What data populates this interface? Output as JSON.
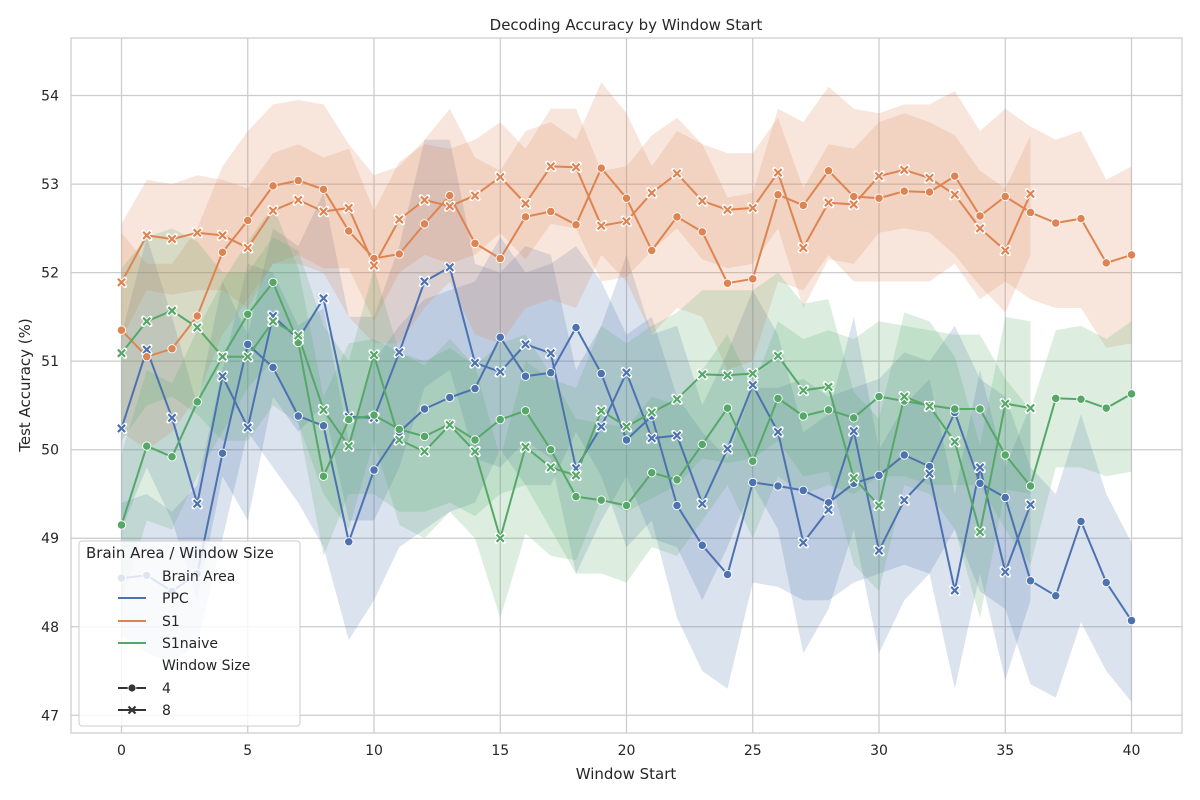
{
  "chart_data": {
    "type": "line",
    "title": "Decoding Accuracy by Window Start",
    "xlabel": "Window Start",
    "ylabel": "Test Accuracy (%)",
    "xlim": [
      -2,
      42
    ],
    "ylim": [
      46.8,
      54.65
    ],
    "xticks": [
      0,
      5,
      10,
      15,
      20,
      25,
      30,
      35,
      40
    ],
    "yticks": [
      47,
      48,
      49,
      50,
      51,
      52,
      53,
      54
    ],
    "grid": true,
    "legend": {
      "position": "lower-left",
      "title": "Brain Area / Window Size",
      "hue_header": "Brain Area",
      "style_header": "Window Size",
      "hue_entries": [
        "PPC",
        "S1",
        "S1naive"
      ],
      "style_entries": [
        "4",
        "8"
      ]
    },
    "colors": {
      "PPC": "#4c72b0",
      "S1": "#dd8452",
      "S1naive": "#55a868"
    },
    "series": [
      {
        "name": "PPC",
        "window": "4",
        "marker": "circle",
        "x": [
          0,
          1,
          2,
          3,
          4,
          5,
          6,
          7,
          8,
          9,
          10,
          11,
          12,
          13,
          14,
          15,
          16,
          17,
          18,
          19,
          20,
          21,
          22,
          23,
          24,
          25,
          26,
          27,
          28,
          29,
          30,
          31,
          32,
          33,
          34,
          35,
          36,
          37,
          38,
          39,
          40
        ],
        "y": [
          48.55,
          48.58,
          48.4,
          48.6,
          49.96,
          51.19,
          50.93,
          50.38,
          50.27,
          48.96,
          49.77,
          50.2,
          50.46,
          50.59,
          50.69,
          51.27,
          50.83,
          50.87,
          51.38,
          50.86,
          50.11,
          50.38,
          49.37,
          48.92,
          48.59,
          49.63,
          49.59,
          49.54,
          49.4,
          49.62,
          49.71,
          49.94,
          49.81,
          50.42,
          49.62,
          49.46,
          48.52,
          48.35,
          49.19,
          48.5,
          48.07
        ],
        "lower": [
          47.9,
          47.7,
          47.6,
          47.8,
          49.0,
          50.2,
          49.8,
          49.4,
          48.9,
          47.85,
          48.3,
          48.9,
          49.1,
          49.3,
          49.4,
          50.0,
          49.6,
          49.6,
          50.2,
          49.7,
          48.9,
          49.2,
          48.1,
          47.5,
          47.3,
          48.5,
          48.45,
          48.3,
          48.3,
          48.5,
          48.6,
          48.7,
          48.6,
          49.1,
          48.4,
          48.2,
          47.35,
          47.2,
          48.05,
          47.5,
          47.15
        ],
        "upper": [
          49.4,
          49.5,
          49.3,
          49.6,
          50.9,
          52.1,
          52.0,
          51.4,
          51.6,
          50.1,
          51.0,
          51.4,
          51.7,
          51.8,
          51.9,
          52.4,
          52.0,
          52.1,
          52.3,
          51.9,
          51.3,
          51.5,
          50.6,
          50.2,
          49.9,
          50.7,
          50.7,
          50.8,
          50.6,
          50.7,
          50.8,
          51.1,
          51.0,
          51.4,
          50.8,
          50.6,
          49.8,
          49.5,
          50.4,
          49.5,
          48.95
        ]
      },
      {
        "name": "PPC",
        "window": "8",
        "marker": "x",
        "x": [
          0,
          1,
          2,
          3,
          4,
          5,
          6,
          7,
          8,
          9,
          10,
          11,
          12,
          13,
          14,
          15,
          16,
          17,
          18,
          19,
          20,
          21,
          22,
          23,
          24,
          25,
          26,
          27,
          28,
          29,
          30,
          31,
          32,
          33,
          34,
          35,
          36
        ],
        "y": [
          50.24,
          51.13,
          50.36,
          49.39,
          50.83,
          50.25,
          51.51,
          51.25,
          51.71,
          50.37,
          50.36,
          51.1,
          51.9,
          52.06,
          50.98,
          50.88,
          51.19,
          51.09,
          49.79,
          50.26,
          50.87,
          50.13,
          50.16,
          49.39,
          50.01,
          50.73,
          50.2,
          48.95,
          49.32,
          50.21,
          48.86,
          49.43,
          49.73,
          48.41,
          49.8,
          48.62,
          49.38
        ],
        "lower": [
          49.1,
          49.8,
          49.2,
          48.3,
          49.7,
          49.2,
          50.6,
          50.2,
          50.5,
          49.2,
          49.2,
          49.8,
          50.7,
          50.9,
          49.9,
          49.8,
          50.1,
          49.9,
          48.6,
          49.2,
          49.7,
          49.0,
          48.9,
          48.3,
          48.9,
          49.6,
          49.1,
          47.7,
          48.2,
          49.1,
          47.7,
          48.3,
          48.6,
          47.3,
          48.6,
          47.4,
          48.3
        ],
        "upper": [
          51.3,
          52.4,
          51.5,
          50.5,
          51.9,
          51.3,
          52.5,
          52.3,
          52.9,
          51.5,
          51.5,
          52.3,
          53.5,
          53.5,
          52.1,
          52.0,
          52.3,
          52.2,
          50.9,
          51.4,
          52.2,
          51.3,
          51.4,
          50.5,
          51.1,
          51.8,
          51.3,
          50.2,
          50.4,
          51.5,
          50.0,
          50.5,
          50.8,
          49.5,
          50.9,
          49.8,
          50.5
        ]
      },
      {
        "name": "S1",
        "window": "4",
        "marker": "circle",
        "x": [
          0,
          1,
          2,
          3,
          4,
          5,
          6,
          7,
          8,
          9,
          10,
          11,
          12,
          13,
          14,
          15,
          16,
          17,
          18,
          19,
          20,
          21,
          22,
          23,
          24,
          25,
          26,
          27,
          28,
          29,
          30,
          31,
          32,
          33,
          34,
          35,
          36,
          37,
          38,
          39,
          40
        ],
        "y": [
          51.35,
          51.05,
          51.14,
          51.51,
          52.23,
          52.59,
          52.98,
          53.04,
          52.94,
          52.47,
          52.16,
          52.21,
          52.55,
          52.87,
          52.33,
          52.16,
          52.63,
          52.69,
          52.54,
          53.18,
          52.84,
          52.25,
          52.63,
          52.46,
          51.88,
          51.93,
          52.88,
          52.76,
          53.15,
          52.86,
          52.84,
          52.92,
          52.91,
          53.09,
          52.64,
          52.86,
          52.68,
          52.56,
          52.61,
          52.11,
          52.2
        ],
        "lower": [
          50.2,
          50.0,
          50.2,
          50.6,
          51.3,
          51.7,
          52.1,
          52.1,
          52.0,
          51.5,
          51.2,
          51.2,
          51.6,
          51.9,
          51.3,
          51.2,
          51.6,
          51.7,
          51.6,
          52.2,
          51.9,
          51.3,
          51.6,
          51.5,
          50.9,
          51.0,
          51.9,
          51.8,
          52.2,
          51.9,
          51.9,
          51.9,
          51.9,
          52.1,
          51.7,
          51.9,
          51.7,
          51.6,
          51.6,
          51.15,
          51.2
        ],
        "upper": [
          52.45,
          52.1,
          52.1,
          52.5,
          53.2,
          53.6,
          53.9,
          53.95,
          53.9,
          53.45,
          53.1,
          53.2,
          53.5,
          53.85,
          53.3,
          53.15,
          53.6,
          53.7,
          53.5,
          54.15,
          53.8,
          53.2,
          53.6,
          53.45,
          52.85,
          52.9,
          53.85,
          53.7,
          54.1,
          53.85,
          53.8,
          53.9,
          53.9,
          54.05,
          53.6,
          53.85,
          53.65,
          53.5,
          53.6,
          53.05,
          53.2
        ]
      },
      {
        "name": "S1",
        "window": "8",
        "marker": "x",
        "x": [
          0,
          1,
          2,
          3,
          4,
          5,
          6,
          7,
          8,
          9,
          10,
          11,
          12,
          13,
          14,
          15,
          16,
          17,
          18,
          19,
          20,
          21,
          22,
          23,
          24,
          25,
          26,
          27,
          28,
          29,
          30,
          31,
          32,
          33,
          34,
          35,
          36
        ],
        "y": [
          51.89,
          52.42,
          52.38,
          52.45,
          52.42,
          52.28,
          52.7,
          52.82,
          52.69,
          52.73,
          52.08,
          52.6,
          52.82,
          52.75,
          52.87,
          53.08,
          52.78,
          53.2,
          53.19,
          52.53,
          52.58,
          52.9,
          53.12,
          52.81,
          52.71,
          52.73,
          53.13,
          52.28,
          52.79,
          52.77,
          53.09,
          53.16,
          53.07,
          52.88,
          52.5,
          52.25,
          52.89
        ],
        "lower": [
          51.25,
          51.8,
          51.75,
          51.8,
          51.8,
          51.6,
          52.1,
          52.2,
          52.05,
          52.05,
          51.45,
          52.0,
          52.2,
          52.1,
          52.2,
          52.45,
          52.15,
          52.55,
          52.5,
          51.9,
          51.95,
          52.25,
          52.5,
          52.15,
          52.05,
          52.1,
          52.5,
          51.6,
          52.15,
          52.1,
          52.45,
          52.5,
          52.45,
          52.2,
          51.85,
          51.55,
          52.2
        ],
        "upper": [
          52.55,
          53.05,
          53.0,
          53.1,
          53.05,
          52.95,
          53.35,
          53.45,
          53.3,
          53.4,
          52.7,
          53.25,
          53.45,
          53.4,
          53.5,
          53.7,
          53.4,
          53.85,
          53.85,
          53.15,
          53.2,
          53.55,
          53.75,
          53.45,
          53.35,
          53.35,
          53.75,
          52.95,
          53.45,
          53.4,
          53.7,
          53.8,
          53.7,
          53.55,
          53.15,
          52.95,
          53.55
        ]
      },
      {
        "name": "S1naive",
        "window": "4",
        "marker": "circle",
        "x": [
          0,
          1,
          2,
          3,
          4,
          5,
          6,
          7,
          8,
          9,
          10,
          11,
          12,
          13,
          14,
          15,
          16,
          17,
          18,
          19,
          20,
          21,
          22,
          23,
          24,
          25,
          26,
          27,
          28,
          29,
          30,
          31,
          32,
          33,
          34,
          35,
          36,
          37,
          38,
          39,
          40
        ],
        "y": [
          49.15,
          50.04,
          49.92,
          50.54,
          51.05,
          51.53,
          51.89,
          51.21,
          49.7,
          50.34,
          50.39,
          50.23,
          50.15,
          50.29,
          50.11,
          50.34,
          50.44,
          50.0,
          49.47,
          49.43,
          49.37,
          49.74,
          49.66,
          50.06,
          50.47,
          49.87,
          50.58,
          50.38,
          50.45,
          50.36,
          50.6,
          50.55,
          50.5,
          50.46,
          50.46,
          49.94,
          49.59,
          50.58,
          50.57,
          50.47,
          50.63
        ],
        "lower": [
          48.3,
          49.2,
          49.1,
          49.7,
          50.2,
          50.7,
          51.0,
          50.3,
          48.8,
          49.5,
          49.5,
          49.3,
          49.3,
          49.4,
          49.25,
          49.5,
          49.6,
          49.1,
          48.6,
          48.6,
          48.5,
          48.9,
          48.8,
          49.2,
          49.6,
          49.0,
          49.7,
          49.5,
          49.6,
          49.5,
          49.7,
          49.7,
          49.6,
          49.6,
          49.6,
          49.1,
          48.7,
          49.8,
          49.8,
          49.7,
          49.75
        ],
        "upper": [
          49.95,
          50.9,
          50.75,
          51.35,
          51.9,
          52.35,
          52.75,
          52.05,
          50.6,
          51.2,
          51.25,
          51.1,
          51.0,
          51.15,
          50.95,
          51.2,
          51.3,
          50.85,
          50.35,
          50.3,
          50.25,
          50.6,
          50.5,
          50.9,
          51.3,
          50.7,
          51.45,
          51.25,
          51.35,
          51.25,
          51.45,
          51.4,
          51.35,
          51.3,
          51.3,
          50.8,
          50.45,
          51.35,
          51.4,
          51.25,
          51.45
        ]
      },
      {
        "name": "S1naive",
        "window": "8",
        "marker": "x",
        "x": [
          0,
          1,
          2,
          3,
          4,
          5,
          6,
          7,
          8,
          9,
          10,
          11,
          12,
          13,
          14,
          15,
          16,
          17,
          18,
          19,
          20,
          21,
          22,
          23,
          24,
          25,
          26,
          27,
          28,
          29,
          30,
          31,
          32,
          33,
          34,
          35,
          36
        ],
        "y": [
          51.09,
          51.45,
          51.57,
          51.38,
          51.05,
          51.05,
          51.45,
          51.29,
          50.45,
          50.04,
          51.07,
          50.11,
          49.98,
          50.28,
          49.98,
          49.0,
          50.03,
          49.8,
          49.71,
          50.44,
          50.26,
          50.42,
          50.57,
          50.85,
          50.84,
          50.86,
          51.06,
          50.67,
          50.71,
          49.68,
          49.37,
          50.6,
          50.49,
          50.09,
          49.07,
          50.52,
          50.47
        ],
        "lower": [
          50.1,
          50.5,
          50.6,
          50.4,
          50.1,
          50.1,
          50.5,
          50.3,
          49.5,
          49.1,
          50.1,
          49.15,
          49.0,
          49.3,
          49.0,
          48.1,
          49.05,
          48.8,
          48.75,
          49.45,
          49.3,
          49.45,
          49.6,
          49.9,
          49.85,
          49.9,
          50.1,
          49.7,
          49.75,
          48.7,
          48.4,
          49.6,
          49.5,
          49.1,
          48.1,
          49.55,
          49.5
        ],
        "upper": [
          52.05,
          52.4,
          52.5,
          52.35,
          52.0,
          52.0,
          52.4,
          52.25,
          51.4,
          51.0,
          52.05,
          51.1,
          50.95,
          51.25,
          50.95,
          49.9,
          51.0,
          50.8,
          50.7,
          51.4,
          51.2,
          51.4,
          51.55,
          51.8,
          51.8,
          51.8,
          52.0,
          51.65,
          51.7,
          50.65,
          50.35,
          51.55,
          51.45,
          51.05,
          50.05,
          51.5,
          51.45
        ]
      }
    ]
  }
}
